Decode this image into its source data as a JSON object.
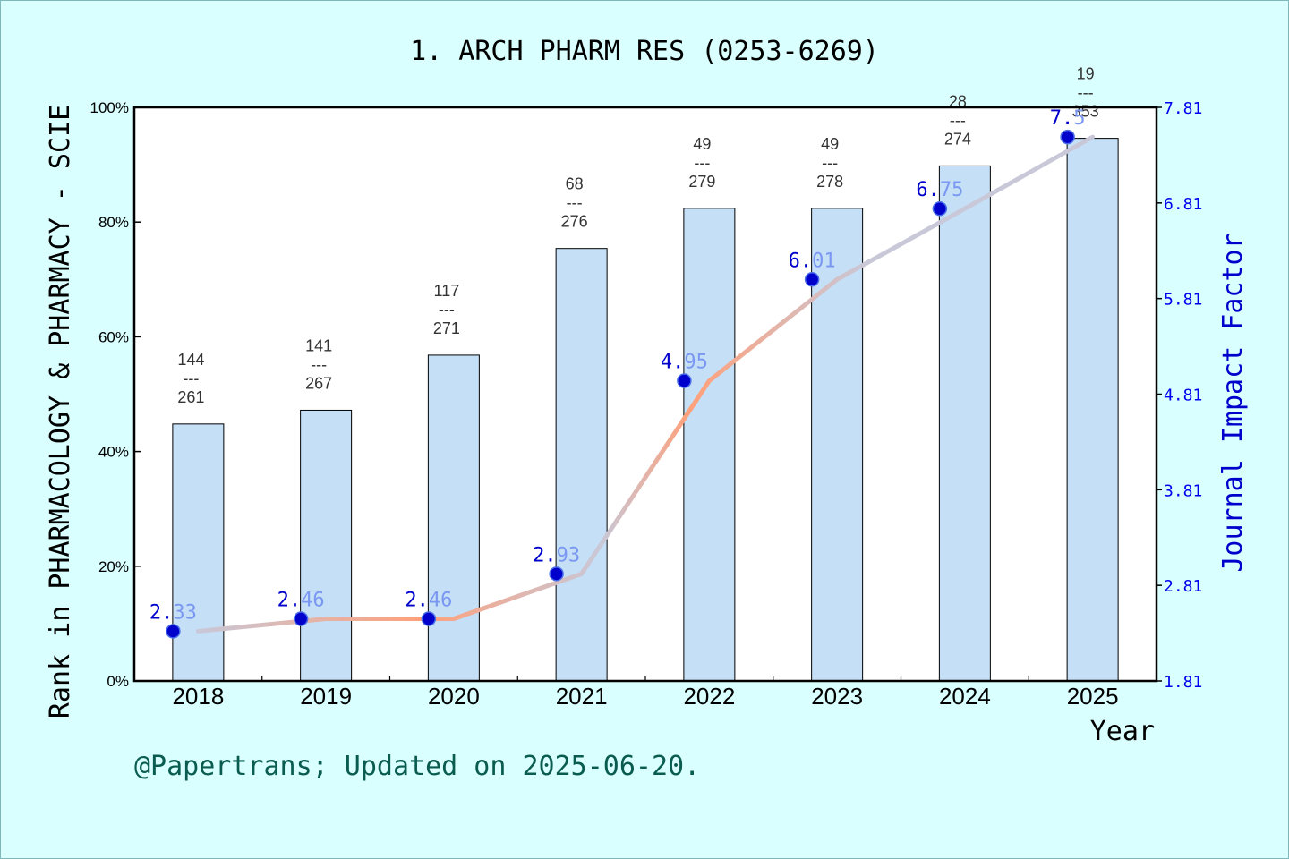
{
  "title": "1. ARCH PHARM RES (0253-6269)",
  "footer": "@Papertrans; Updated on 2025-06-20.",
  "chart_data": {
    "type": "bar",
    "categories": [
      "2018",
      "2019",
      "2020",
      "2021",
      "2022",
      "2023",
      "2024",
      "2025"
    ],
    "xlabel": "Year",
    "ylabel": "Rank in PHARMACOLOGY & PHARMACY - SCIE",
    "ylabel_right": "Journal Impact Factor",
    "ylim": [
      0,
      100
    ],
    "y_ticks": [
      "0%",
      "20%",
      "40%",
      "60%",
      "80%",
      "100%"
    ],
    "ylim_right": [
      1.81,
      7.81
    ],
    "y_ticks_right": [
      "1.81",
      "2.81",
      "3.81",
      "4.81",
      "5.81",
      "6.81",
      "7.81"
    ],
    "series": [
      {
        "type": "bar",
        "values": [
          44.8,
          47.2,
          56.8,
          75.4,
          82.4,
          82.4,
          89.8,
          94.6
        ],
        "rank": [
          "144",
          "141",
          "117",
          "68",
          "49",
          "49",
          "28",
          "19"
        ],
        "total": [
          "261",
          "267",
          "271",
          "276",
          "279",
          "278",
          "274",
          "353"
        ],
        "color": "#c5dff7"
      },
      {
        "type": "line",
        "values": [
          2.33,
          2.46,
          2.46,
          2.93,
          4.95,
          6.01,
          6.75,
          7.5
        ],
        "labels": [
          "2.33",
          "2.46",
          "2.46",
          "2.93",
          "4.95",
          "6.01",
          "6.75",
          "7.5"
        ],
        "color_start": "#ffa07a",
        "color_end": "#c8c8d8",
        "marker_color": "#0000cc"
      }
    ],
    "grid": false
  }
}
